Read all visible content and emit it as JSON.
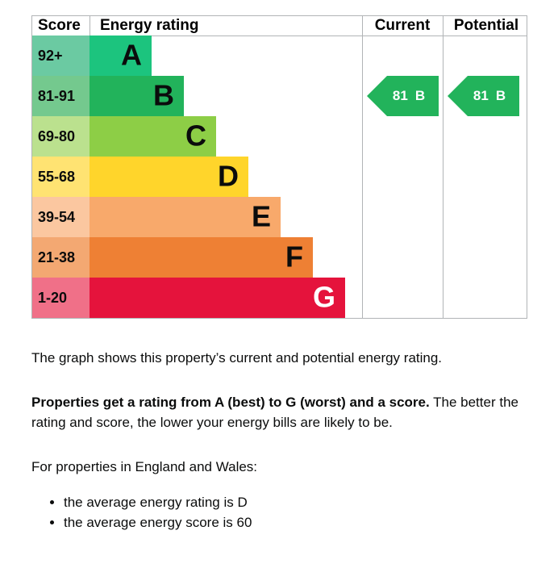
{
  "chart": {
    "headers": {
      "score": "Score",
      "rating": "Energy rating",
      "current": "Current",
      "potential": "Potential"
    },
    "bands": [
      {
        "score": "92+",
        "letter": "A",
        "color": "#1cc47e",
        "score_color": "#6bcaa2"
      },
      {
        "score": "81-91",
        "letter": "B",
        "color": "#22b35b",
        "score_color": "#74c98e"
      },
      {
        "score": "69-80",
        "letter": "C",
        "color": "#8dce46",
        "score_color": "#bbe18e"
      },
      {
        "score": "55-68",
        "letter": "D",
        "color": "#ffd52b",
        "score_color": "#ffe372"
      },
      {
        "score": "39-54",
        "letter": "E",
        "color": "#f8a96b",
        "score_color": "#fbc7a0"
      },
      {
        "score": "21-38",
        "letter": "F",
        "color": "#ee8034",
        "score_color": "#f3a872"
      },
      {
        "score": "1-20",
        "letter": "G",
        "color": "#e5133c",
        "score_color": "#f07088"
      }
    ],
    "current": {
      "score": "81",
      "rating": "B",
      "band": 1,
      "color": "#22b35b"
    },
    "potential": {
      "score": "81",
      "rating": "B",
      "band": 1,
      "color": "#22b35b"
    }
  },
  "text": {
    "intro": "The graph shows this property’s current and potential energy rating.",
    "rating_bold": "Properties get a rating from A (best) to G (worst) and a score.",
    "rating_rest": " The better the rating and score, the lower your energy bills are likely to be.",
    "average_intro": "For properties in England and Wales:",
    "bullets": [
      "the average energy rating is D",
      "the average energy score is 60"
    ]
  }
}
